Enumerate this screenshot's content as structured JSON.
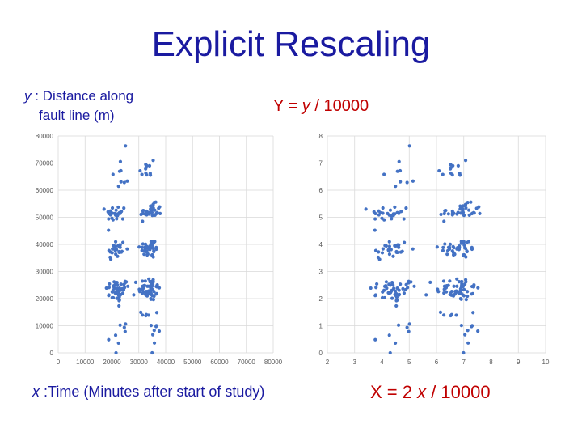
{
  "title": "Explicit Rescaling",
  "left_ylabel": {
    "var": "y",
    "text": " : Distance along",
    "line2": "fault line (m)"
  },
  "left_xlabel": {
    "var": "x",
    "text": " :Time (Minutes after start of study)"
  },
  "formula_y": {
    "prefix": "Y = ",
    "var": "y",
    "suffix": " / 10000"
  },
  "formula_x": {
    "prefix": "X = 2 ",
    "var": "x",
    "suffix": " / 10000"
  },
  "colors": {
    "title": "#1a1aa0",
    "formula": "#c00000",
    "points": "#4472c4",
    "grid": "#d9d9d9"
  },
  "chart_data": [
    {
      "type": "scatter",
      "title": "",
      "xlabel": "",
      "ylabel": "",
      "xlim": [
        0,
        80000
      ],
      "ylim": [
        0,
        80000
      ],
      "xticks": [
        0,
        10000,
        20000,
        30000,
        40000,
        50000,
        60000,
        70000,
        80000
      ],
      "yticks": [
        0,
        10000,
        20000,
        30000,
        40000,
        50000,
        60000,
        70000,
        80000
      ],
      "grid": true,
      "clusters": [
        {
          "x": 22000,
          "y": 23000,
          "sx": 2200,
          "sy": 2200,
          "n": 45
        },
        {
          "x": 34000,
          "y": 23500,
          "sx": 2000,
          "sy": 2200,
          "n": 55
        },
        {
          "x": 21500,
          "y": 38000,
          "sx": 1800,
          "sy": 2000,
          "n": 28
        },
        {
          "x": 34000,
          "y": 38500,
          "sx": 1800,
          "sy": 1800,
          "n": 40
        },
        {
          "x": 21500,
          "y": 51500,
          "sx": 1800,
          "sy": 1500,
          "n": 26
        },
        {
          "x": 34500,
          "y": 52000,
          "sx": 2000,
          "sy": 1500,
          "n": 38
        },
        {
          "x": 22500,
          "y": 9000,
          "sx": 1500,
          "sy": 5000,
          "n": 9
        },
        {
          "x": 34000,
          "y": 9000,
          "sx": 1500,
          "sy": 5000,
          "n": 14
        },
        {
          "x": 23000,
          "y": 67000,
          "sx": 1500,
          "sy": 4000,
          "n": 9
        },
        {
          "x": 33000,
          "y": 67000,
          "sx": 1500,
          "sy": 4000,
          "n": 12
        }
      ]
    },
    {
      "type": "scatter",
      "title": "",
      "xlabel": "",
      "ylabel": "",
      "xlim": [
        2,
        10
      ],
      "ylim": [
        0,
        8
      ],
      "xticks": [
        2,
        3,
        4,
        5,
        6,
        7,
        8,
        9,
        10
      ],
      "yticks": [
        0,
        1,
        2,
        3,
        4,
        5,
        6,
        7,
        8
      ],
      "grid": true,
      "clusters": [
        {
          "x": 4.4,
          "y": 2.3,
          "sx": 0.44,
          "sy": 0.22,
          "n": 45
        },
        {
          "x": 6.8,
          "y": 2.35,
          "sx": 0.4,
          "sy": 0.22,
          "n": 55
        },
        {
          "x": 4.3,
          "y": 3.8,
          "sx": 0.36,
          "sy": 0.2,
          "n": 28
        },
        {
          "x": 6.8,
          "y": 3.85,
          "sx": 0.36,
          "sy": 0.18,
          "n": 40
        },
        {
          "x": 4.3,
          "y": 5.15,
          "sx": 0.36,
          "sy": 0.15,
          "n": 26
        },
        {
          "x": 6.9,
          "y": 5.2,
          "sx": 0.4,
          "sy": 0.15,
          "n": 38
        },
        {
          "x": 4.5,
          "y": 0.9,
          "sx": 0.3,
          "sy": 0.5,
          "n": 9
        },
        {
          "x": 6.8,
          "y": 0.9,
          "sx": 0.3,
          "sy": 0.5,
          "n": 14
        },
        {
          "x": 4.6,
          "y": 6.7,
          "sx": 0.3,
          "sy": 0.4,
          "n": 9
        },
        {
          "x": 6.6,
          "y": 6.7,
          "sx": 0.3,
          "sy": 0.4,
          "n": 12
        }
      ]
    }
  ]
}
